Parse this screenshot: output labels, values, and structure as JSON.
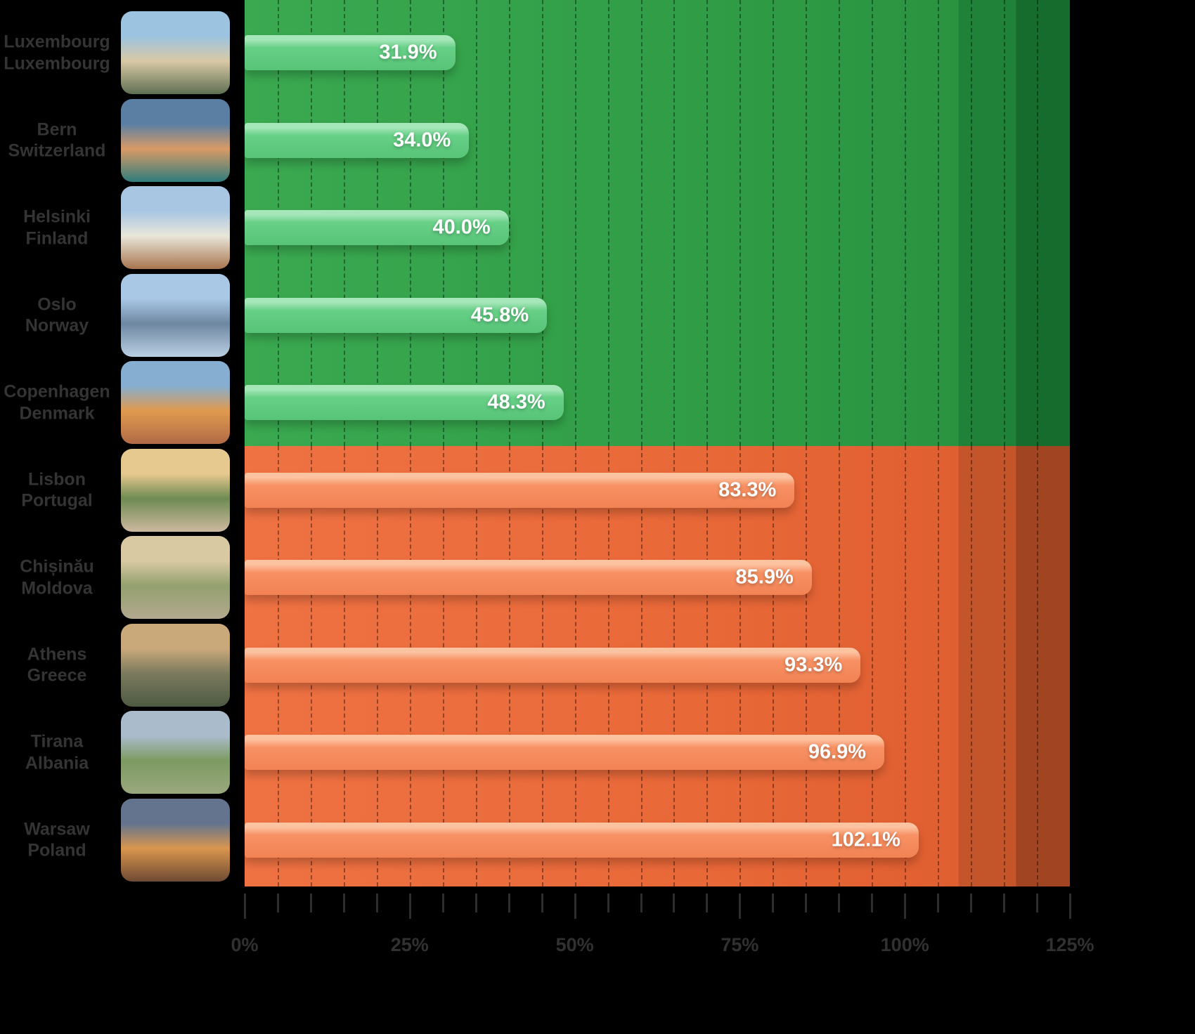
{
  "chart_data": {
    "type": "bar",
    "orientation": "horizontal",
    "title": "",
    "xlabel": "",
    "ylabel": "",
    "unit": "%",
    "xlim": [
      0,
      125
    ],
    "x_ticks": [
      "0%",
      "25%",
      "50%",
      "75%",
      "100%",
      "125%"
    ],
    "x_tick_values": [
      0,
      25,
      50,
      75,
      100,
      125
    ],
    "minor_tick_step": 5,
    "grid": true,
    "legend": "none",
    "colors": {
      "background": "#000000",
      "green_panel": "#2f9c45",
      "green_panel_dark": "#156c2d",
      "green_bar": "#5fcb80",
      "green_bar_highlight": "#a6e7ba",
      "orange_panel": "#e86737",
      "orange_panel_dark": "#a04422",
      "orange_bar": "#f68a5c",
      "orange_bar_highlight": "#fcc3a1",
      "value_label": "#ffffff",
      "axis_label": "#343434"
    },
    "rows": [
      {
        "city": "Luxembourg",
        "country": "Luxembourg",
        "value": 31.9,
        "label": "31.9%",
        "group": "green",
        "thumb_palette": [
          "#9cc3e0",
          "#d9c9a6",
          "#5e6f52"
        ]
      },
      {
        "city": "Bern",
        "country": "Switzerland",
        "value": 34.0,
        "label": "34.0%",
        "group": "green",
        "thumb_palette": [
          "#5a7fa3",
          "#d99a66",
          "#2f7d7d"
        ]
      },
      {
        "city": "Helsinki",
        "country": "Finland",
        "value": 40.0,
        "label": "40.0%",
        "group": "green",
        "thumb_palette": [
          "#a8c6e2",
          "#e9e6da",
          "#a8754f"
        ]
      },
      {
        "city": "Oslo",
        "country": "Norway",
        "value": 45.8,
        "label": "45.8%",
        "group": "green",
        "thumb_palette": [
          "#a9c8e6",
          "#6e87a1",
          "#b9cfe2"
        ]
      },
      {
        "city": "Copenhagen",
        "country": "Denmark",
        "value": 48.3,
        "label": "48.3%",
        "group": "green",
        "thumb_palette": [
          "#86aed0",
          "#e09a4e",
          "#b06a46"
        ]
      },
      {
        "city": "Lisbon",
        "country": "Portugal",
        "value": 83.3,
        "label": "83.3%",
        "group": "orange",
        "thumb_palette": [
          "#e6c98f",
          "#6e8a52",
          "#cdb9a0"
        ]
      },
      {
        "city": "Chișinău",
        "country": "Moldova",
        "value": 85.9,
        "label": "85.9%",
        "group": "orange",
        "thumb_palette": [
          "#d9c9a3",
          "#93a06e",
          "#b3a98f"
        ]
      },
      {
        "city": "Athens",
        "country": "Greece",
        "value": 93.3,
        "label": "93.3%",
        "group": "orange",
        "thumb_palette": [
          "#c9a87a",
          "#7a7a5e",
          "#4e5a42"
        ]
      },
      {
        "city": "Tirana",
        "country": "Albania",
        "value": 96.9,
        "label": "96.9%",
        "group": "orange",
        "thumb_palette": [
          "#aabccb",
          "#7d9a62",
          "#9aa87e"
        ]
      },
      {
        "city": "Warsaw",
        "country": "Poland",
        "value": 102.1,
        "label": "102.1%",
        "group": "orange",
        "thumb_palette": [
          "#64748f",
          "#d9964e",
          "#6e4a33"
        ]
      }
    ]
  }
}
